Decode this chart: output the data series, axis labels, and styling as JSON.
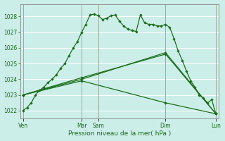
{
  "xlabel": "Pression niveau de la mer( hPa )",
  "bg_color": "#cceee8",
  "grid_color": "#aaddcc",
  "line_color": "#1a6e1a",
  "ylim": [
    1021.5,
    1028.8
  ],
  "yticks": [
    1022,
    1023,
    1024,
    1025,
    1026,
    1027,
    1028
  ],
  "day_labels": [
    "Ven",
    "",
    "Mar",
    "Sam",
    "",
    "Dim",
    "",
    "Lun"
  ],
  "day_positions": [
    0.0,
    3.5,
    7.0,
    9.0,
    13.0,
    17.0,
    20.0,
    23.0
  ],
  "vline_positions": [
    0.0,
    7.0,
    9.0,
    17.0,
    23.0
  ],
  "series1_x": [
    0.0,
    0.5,
    1.0,
    1.5,
    2.0,
    2.5,
    3.0,
    3.5,
    4.0,
    4.5,
    5.0,
    5.5,
    6.0,
    6.5,
    7.0,
    7.5,
    8.0,
    8.5,
    9.0,
    9.5,
    10.0,
    10.5,
    11.0,
    11.5,
    12.0,
    12.5,
    13.0,
    13.5,
    14.0,
    14.5,
    15.0,
    15.5,
    16.0,
    16.5,
    17.0,
    17.5,
    18.0,
    18.5,
    19.0,
    19.5,
    20.0,
    20.5,
    21.0,
    21.5,
    22.0,
    22.5,
    23.0
  ],
  "series1_y": [
    1022.0,
    1022.2,
    1022.5,
    1023.0,
    1023.3,
    1023.5,
    1023.8,
    1024.0,
    1024.3,
    1024.7,
    1025.0,
    1025.5,
    1026.0,
    1026.4,
    1027.0,
    1027.5,
    1028.1,
    1028.15,
    1028.05,
    1027.8,
    1027.9,
    1028.05,
    1028.1,
    1027.7,
    1027.4,
    1027.2,
    1027.1,
    1027.05,
    1028.1,
    1027.6,
    1027.5,
    1027.5,
    1027.4,
    1027.4,
    1027.5,
    1027.3,
    1026.6,
    1025.8,
    1025.2,
    1024.5,
    1023.9,
    1023.5,
    1023.0,
    1022.8,
    1022.5,
    1022.7,
    1021.8
  ],
  "series2_x": [
    0.0,
    7.0,
    17.0,
    23.0
  ],
  "series2_y": [
    1023.0,
    1024.0,
    1025.7,
    1021.8
  ],
  "series3_x": [
    0.0,
    7.0,
    17.0,
    23.0
  ],
  "series3_y": [
    1023.0,
    1024.1,
    1025.6,
    1021.8
  ],
  "series4_x": [
    0.0,
    7.0,
    17.0,
    23.0
  ],
  "series4_y": [
    1023.0,
    1023.9,
    1022.5,
    1021.8
  ],
  "vline_color": "#9aaa99",
  "spine_color": "#888888"
}
